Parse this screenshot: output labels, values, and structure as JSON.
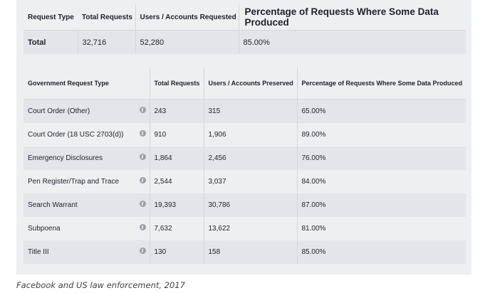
{
  "summary": {
    "headers": {
      "request_type": "Request Type",
      "total_requests": "Total Requests",
      "users_accounts_requested": "Users / Accounts Requested",
      "percentage": "Percentage of Requests Where Some Data Produced"
    },
    "row": {
      "label": "Total",
      "total_requests": "32,716",
      "users_accounts": "52,280",
      "percentage": "85.00%"
    }
  },
  "detail": {
    "headers": {
      "type": "Government Request Type",
      "total_requests": "Total Requests",
      "users_accounts_preserved": "Users / Accounts Preserved",
      "percentage": "Percentage of Requests Where Some Data Produced"
    },
    "info_icon_glyph": "i",
    "rows": [
      {
        "type": "Court Order (Other)",
        "total": "243",
        "users": "315",
        "pct": "65.00%"
      },
      {
        "type": "Court Order (18 USC 2703(d))",
        "total": "910",
        "users": "1,906",
        "pct": "89.00%"
      },
      {
        "type": "Emergency Disclosures",
        "total": "1,864",
        "users": "2,456",
        "pct": "76.00%"
      },
      {
        "type": "Pen Register/Trap and Trace",
        "total": "2,544",
        "users": "3,037",
        "pct": "84.00%"
      },
      {
        "type": "Search Warrant",
        "total": "19,393",
        "users": "30,786",
        "pct": "87.00%"
      },
      {
        "type": "Subpoena",
        "total": "7,632",
        "users": "13,622",
        "pct": "81.00%"
      },
      {
        "type": "Title III",
        "total": "130",
        "users": "158",
        "pct": "85.00%"
      }
    ]
  },
  "caption": "Facebook and US law enforcement, 2017"
}
